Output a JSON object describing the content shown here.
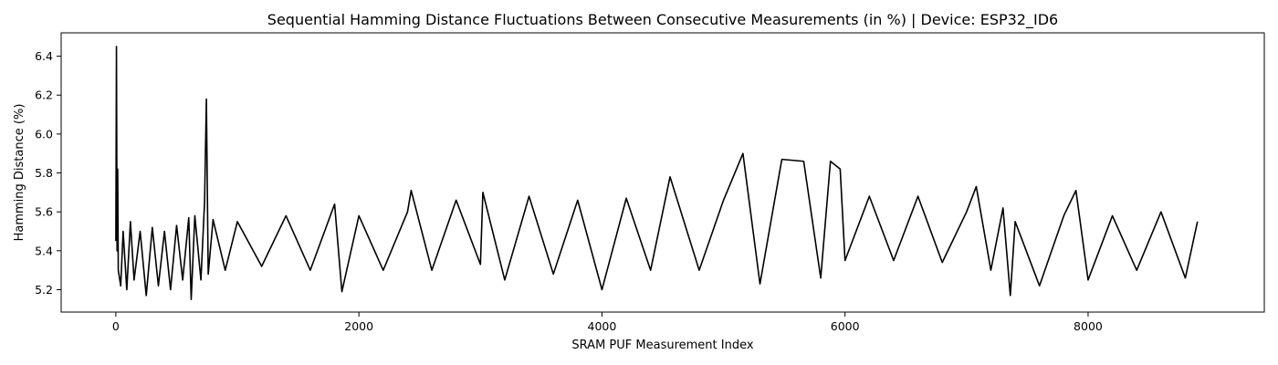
{
  "chart_data": {
    "type": "line",
    "title": "Sequential Hamming Distance Fluctuations Between Consecutive Measurements (in %) | Device: ESP32_ID6",
    "xlabel": "SRAM PUF Measurement Index",
    "ylabel": "Hamming Distance (%)",
    "xlim": [
      -450,
      9450
    ],
    "ylim": [
      5.085,
      6.52
    ],
    "xticks": [
      0,
      2000,
      4000,
      6000,
      8000
    ],
    "xtick_labels": [
      "0",
      "2000",
      "4000",
      "6000",
      "8000"
    ],
    "yticks": [
      5.2,
      5.4,
      5.6,
      5.8,
      6.0,
      6.2,
      6.4
    ],
    "ytick_labels": [
      "5.2",
      "5.4",
      "5.6",
      "5.8",
      "6.0",
      "6.2",
      "6.4"
    ],
    "grid": false,
    "legend": "none",
    "line_color": "#000000",
    "series": [
      {
        "x": [
          0,
          5,
          10,
          15,
          20,
          40,
          60,
          90,
          120,
          150,
          200,
          250,
          300,
          350,
          400,
          450,
          500,
          550,
          600,
          620,
          650,
          700,
          730,
          745,
          760,
          800,
          900,
          1000,
          1200,
          1400,
          1600,
          1800,
          1860,
          2000,
          2200,
          2400,
          2430,
          2600,
          2800,
          3000,
          3020,
          3200,
          3400,
          3600,
          3800,
          4000,
          4200,
          4400,
          4560,
          4800,
          5000,
          5160,
          5300,
          5480,
          5660,
          5800,
          5880,
          5960,
          6000,
          6200,
          6400,
          6600,
          6800,
          7000,
          7080,
          7200,
          7300,
          7360,
          7400,
          7600,
          7800,
          7900,
          8000,
          8200,
          8400,
          8600,
          8800,
          8900
        ],
        "values": [
          5.45,
          6.45,
          5.4,
          5.82,
          5.3,
          5.22,
          5.5,
          5.2,
          5.55,
          5.25,
          5.5,
          5.17,
          5.52,
          5.22,
          5.5,
          5.2,
          5.53,
          5.25,
          5.57,
          5.15,
          5.58,
          5.25,
          5.65,
          6.18,
          5.28,
          5.56,
          5.3,
          5.55,
          5.32,
          5.58,
          5.3,
          5.64,
          5.19,
          5.58,
          5.3,
          5.6,
          5.71,
          5.3,
          5.66,
          5.33,
          5.7,
          5.25,
          5.68,
          5.28,
          5.66,
          5.2,
          5.67,
          5.3,
          5.78,
          5.3,
          5.66,
          5.9,
          5.23,
          5.87,
          5.86,
          5.26,
          5.86,
          5.82,
          5.35,
          5.68,
          5.35,
          5.68,
          5.34,
          5.6,
          5.73,
          5.3,
          5.62,
          5.17,
          5.55,
          5.22,
          5.58,
          5.71,
          5.25,
          5.58,
          5.3,
          5.6,
          5.26,
          5.55
        ]
      }
    ]
  }
}
